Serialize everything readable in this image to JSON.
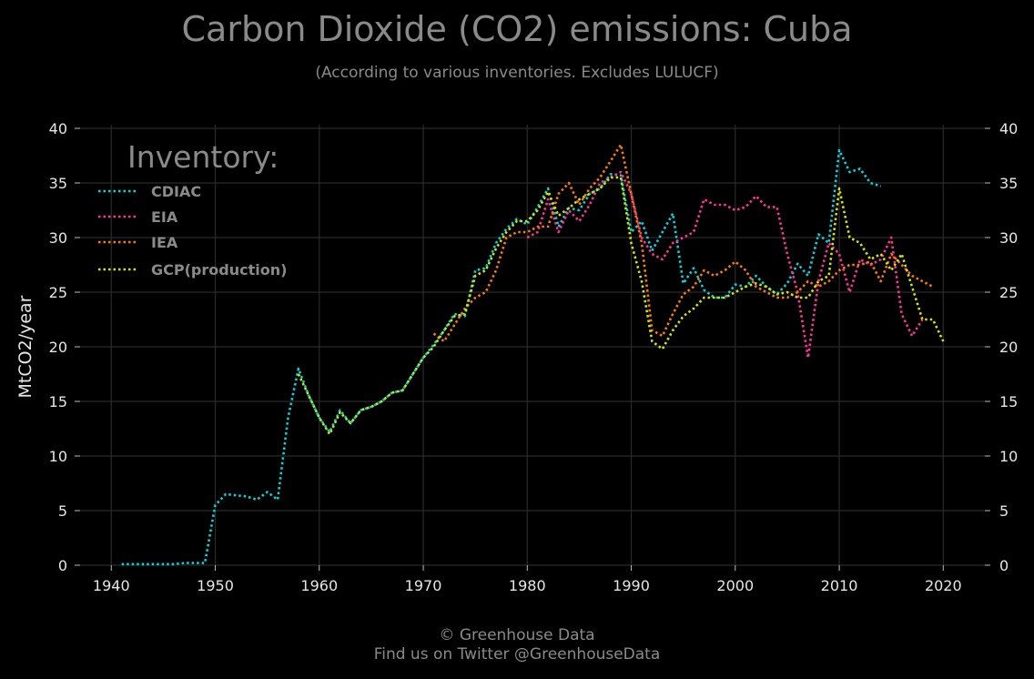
{
  "header": {
    "title": "Carbon Dioxide (CO2) emissions: Cuba",
    "subtitle": "(According to various inventories. Excludes LULUCF)"
  },
  "footer": {
    "line1": "© Greenhouse Data",
    "line2": "Find us on Twitter @GreenhouseData"
  },
  "chart_data": {
    "type": "line",
    "title": "Carbon Dioxide (CO2) emissions: Cuba",
    "subtitle": "(According to various inventories. Excludes LULUCF)",
    "xlabel": "",
    "ylabel": "MtCO2/year",
    "xlim": [
      1937,
      2024
    ],
    "ylim": [
      0,
      40
    ],
    "xticks": [
      1940,
      1950,
      1960,
      1970,
      1980,
      1990,
      2000,
      2010,
      2020
    ],
    "yticks": [
      0,
      5,
      10,
      15,
      20,
      25,
      30,
      35,
      40
    ],
    "grid": true,
    "mirror_y_axis": true,
    "line_style": "dotted",
    "legend": {
      "title": "Inventory:",
      "placement": "top-left"
    },
    "series": [
      {
        "name": "CDIAC",
        "color": "#00d5e0",
        "x": [
          1941,
          1942,
          1943,
          1944,
          1945,
          1946,
          1947,
          1948,
          1949,
          1950,
          1951,
          1952,
          1953,
          1954,
          1955,
          1956,
          1957,
          1958,
          1959,
          1960,
          1961,
          1962,
          1963,
          1964,
          1965,
          1966,
          1967,
          1968,
          1969,
          1970,
          1971,
          1972,
          1973,
          1974,
          1975,
          1976,
          1977,
          1978,
          1979,
          1980,
          1981,
          1982,
          1983,
          1984,
          1985,
          1986,
          1987,
          1988,
          1989,
          1990,
          1991,
          1992,
          1993,
          1994,
          1995,
          1996,
          1997,
          1998,
          1999,
          2000,
          2001,
          2002,
          2003,
          2004,
          2005,
          2006,
          2007,
          2008,
          2009,
          2010,
          2011,
          2012,
          2013,
          2014
        ],
        "y": [
          0.1,
          0.1,
          0.1,
          0.1,
          0.1,
          0.1,
          0.2,
          0.2,
          0.2,
          5.5,
          6.5,
          6.4,
          6.3,
          6.0,
          6.7,
          6.0,
          13.5,
          18.0,
          15.5,
          13.5,
          12.2,
          14.2,
          13.0,
          14.2,
          14.5,
          15.0,
          15.8,
          16.0,
          17.5,
          19.0,
          20.2,
          21.5,
          23.0,
          22.8,
          27.0,
          27.2,
          29.5,
          30.8,
          31.7,
          31.2,
          32.8,
          34.5,
          31.0,
          32.7,
          32.5,
          34.0,
          34.5,
          35.8,
          35.7,
          30.5,
          31.5,
          28.8,
          30.5,
          32.2,
          25.8,
          27.2,
          25.2,
          24.5,
          24.5,
          25.7,
          25.5,
          26.5,
          25.5,
          24.8,
          25.8,
          27.6,
          26.5,
          30.3,
          29.5,
          38.0,
          36.0,
          36.3,
          35.0,
          34.7
        ]
      },
      {
        "name": "EIA",
        "color": "#ff3399",
        "x": [
          1980,
          1981,
          1982,
          1983,
          1984,
          1985,
          1986,
          1987,
          1988,
          1989,
          1990,
          1991,
          1992,
          1993,
          1994,
          1995,
          1996,
          1997,
          1998,
          1999,
          2000,
          2001,
          2002,
          2003,
          2004,
          2005,
          2006,
          2007,
          2008,
          2009,
          2010,
          2011,
          2012,
          2013,
          2014,
          2015,
          2016,
          2017,
          2018
        ],
        "y": [
          30.0,
          30.5,
          33.5,
          30.5,
          32.5,
          31.5,
          33.0,
          35.0,
          35.5,
          36.0,
          34.0,
          30.0,
          28.5,
          28.0,
          29.5,
          30.0,
          30.5,
          33.5,
          33.0,
          33.0,
          32.5,
          32.8,
          33.8,
          32.8,
          32.8,
          28.5,
          25.0,
          19.0,
          26.0,
          29.5,
          28.5,
          25.0,
          28.0,
          27.5,
          28.0,
          30.0,
          23.0,
          21.0,
          22.5
        ]
      },
      {
        "name": "IEA",
        "color": "#ff7a00",
        "x": [
          1971,
          1972,
          1973,
          1974,
          1975,
          1976,
          1977,
          1978,
          1979,
          1980,
          1981,
          1982,
          1983,
          1984,
          1985,
          1986,
          1987,
          1988,
          1989,
          1990,
          1991,
          1992,
          1993,
          1994,
          1995,
          1996,
          1997,
          1998,
          1999,
          2000,
          2001,
          2002,
          2003,
          2004,
          2005,
          2006,
          2007,
          2008,
          2009,
          2010,
          2011,
          2012,
          2013,
          2014,
          2015,
          2016,
          2017,
          2018,
          2019
        ],
        "y": [
          21.2,
          20.5,
          22.0,
          23.5,
          24.5,
          25.0,
          27.0,
          30.0,
          30.5,
          30.5,
          31.0,
          31.0,
          34.0,
          35.0,
          33.0,
          34.5,
          35.5,
          37.0,
          38.5,
          34.0,
          29.5,
          21.5,
          21.0,
          23.0,
          24.8,
          25.5,
          27.0,
          26.5,
          27.0,
          27.8,
          27.0,
          25.5,
          25.0,
          24.5,
          24.5,
          25.0,
          26.0,
          25.5,
          26.0,
          27.0,
          27.5,
          27.5,
          27.8,
          26.0,
          28.5,
          27.5,
          26.5,
          26.0,
          25.5
        ]
      },
      {
        "name": "GCP(production)",
        "color": "#d4e600",
        "x": [
          1958,
          1959,
          1960,
          1961,
          1962,
          1963,
          1964,
          1965,
          1966,
          1967,
          1968,
          1969,
          1970,
          1971,
          1972,
          1973,
          1974,
          1975,
          1976,
          1977,
          1978,
          1979,
          1980,
          1981,
          1982,
          1983,
          1984,
          1985,
          1986,
          1987,
          1988,
          1989,
          1990,
          1991,
          1992,
          1993,
          1994,
          1995,
          1996,
          1997,
          1998,
          1999,
          2000,
          2001,
          2002,
          2003,
          2004,
          2005,
          2006,
          2007,
          2008,
          2009,
          2010,
          2011,
          2012,
          2013,
          2014,
          2015,
          2016,
          2017,
          2018,
          2019,
          2020
        ],
        "y": [
          17.5,
          15.5,
          13.5,
          12.0,
          14.0,
          13.0,
          14.2,
          14.5,
          15.0,
          15.8,
          16.0,
          17.5,
          19.0,
          20.0,
          21.5,
          22.8,
          23.0,
          26.5,
          27.0,
          29.0,
          30.5,
          31.5,
          31.5,
          32.5,
          34.2,
          32.0,
          32.7,
          33.5,
          34.0,
          34.5,
          35.5,
          35.5,
          29.5,
          26.0,
          20.5,
          19.8,
          21.5,
          22.8,
          23.5,
          24.5,
          24.5,
          24.5,
          25.0,
          25.5,
          25.8,
          25.5,
          24.8,
          25.0,
          24.5,
          24.5,
          26.0,
          26.5,
          34.5,
          30.0,
          29.5,
          28.0,
          28.5,
          27.0,
          28.5,
          25.5,
          22.5,
          22.5,
          20.5
        ]
      }
    ]
  }
}
